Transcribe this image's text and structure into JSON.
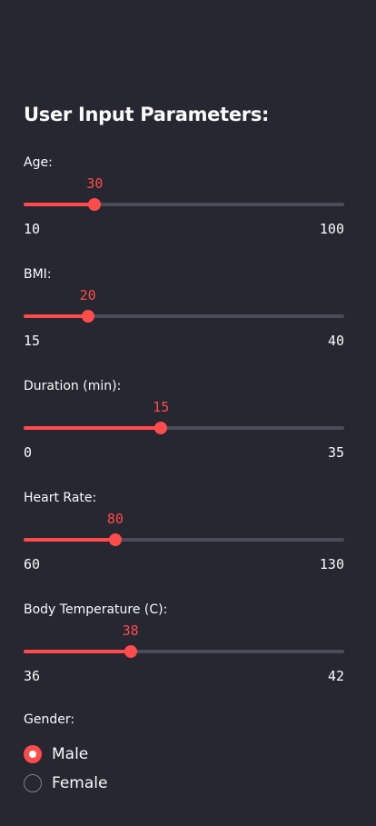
{
  "sidebar": {
    "heading": "User Input Parameters:",
    "accent_color": "#ff4b4b",
    "background_color": "#262730",
    "sliders": [
      {
        "id": "age",
        "label": "Age:",
        "min": 10,
        "max": 100,
        "value": 30,
        "min_label": "10",
        "max_label": "100",
        "value_label": "30"
      },
      {
        "id": "bmi",
        "label": "BMI:",
        "min": 15,
        "max": 40,
        "value": 20,
        "min_label": "15",
        "max_label": "40",
        "value_label": "20"
      },
      {
        "id": "duration",
        "label": "Duration (min):",
        "min": 0,
        "max": 35,
        "value": 15,
        "min_label": "0",
        "max_label": "35",
        "value_label": "15"
      },
      {
        "id": "heart-rate",
        "label": "Heart Rate:",
        "min": 60,
        "max": 130,
        "value": 80,
        "min_label": "60",
        "max_label": "130",
        "value_label": "80"
      },
      {
        "id": "body-temperature",
        "label": "Body Temperature (C):",
        "min": 36,
        "max": 42,
        "value": 38,
        "min_label": "36",
        "max_label": "42",
        "value_label": "38"
      }
    ],
    "gender": {
      "label": "Gender:",
      "options": [
        {
          "label": "Male",
          "selected": true
        },
        {
          "label": "Female",
          "selected": false
        }
      ]
    }
  }
}
